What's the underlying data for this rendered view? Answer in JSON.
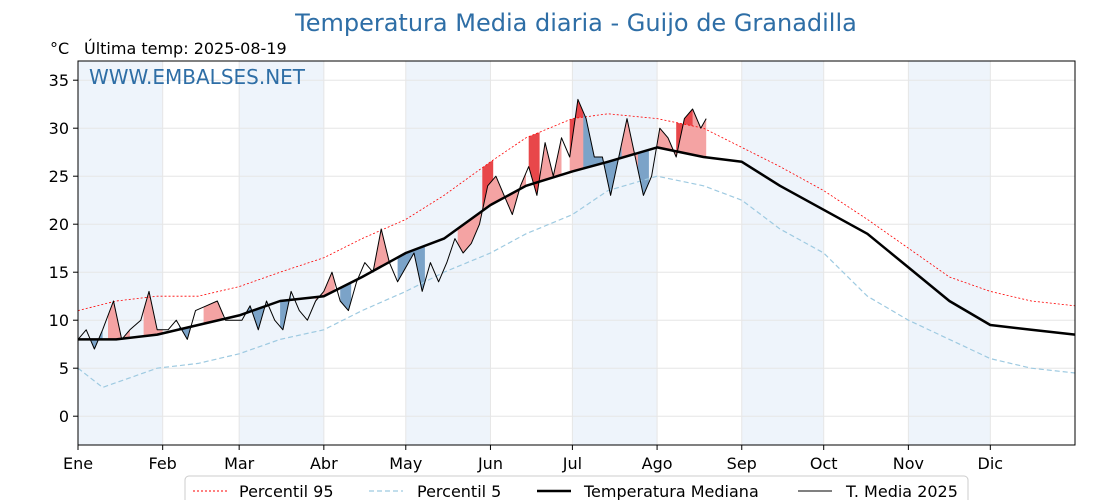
{
  "chart_data": {
    "type": "line",
    "title": "Temperatura Media diaria - Guijo de Granadilla",
    "unit": "°C",
    "last_temp_label": "Última temp: 2025-08-19",
    "watermark": "WWW.EMBALSES.NET",
    "ylim": [
      -3,
      37
    ],
    "yticks": [
      0,
      5,
      10,
      15,
      20,
      25,
      30,
      35
    ],
    "x_categories": [
      "Ene",
      "Feb",
      "Mar",
      "Abr",
      "May",
      "Jun",
      "Jul",
      "Ago",
      "Sep",
      "Oct",
      "Nov",
      "Dic"
    ],
    "month_start_day": [
      1,
      32,
      60,
      91,
      121,
      152,
      182,
      213,
      244,
      274,
      305,
      335
    ],
    "grid": true,
    "legend_position": "bottom",
    "colors": {
      "p95": "#ff0000",
      "p5": "#9ecae1",
      "median": "#000000",
      "current": "#000000",
      "above_fill": "#f4a3a3",
      "above_strong_fill": "#e8474a",
      "below_fill": "#7ba3c8",
      "shade": "#eef4fb",
      "title": "#2e6ea6"
    },
    "series": [
      {
        "name": "Percentil 95",
        "key": "p95",
        "style": "dotted-thin",
        "points": [
          [
            1,
            11
          ],
          [
            15,
            12
          ],
          [
            30,
            12.5
          ],
          [
            45,
            12.5
          ],
          [
            60,
            13.5
          ],
          [
            75,
            15
          ],
          [
            91,
            16.5
          ],
          [
            105,
            18.5
          ],
          [
            121,
            20.5
          ],
          [
            135,
            23
          ],
          [
            152,
            26.5
          ],
          [
            165,
            29
          ],
          [
            182,
            31
          ],
          [
            195,
            31.5
          ],
          [
            213,
            31
          ],
          [
            230,
            30
          ],
          [
            244,
            28
          ],
          [
            258,
            26
          ],
          [
            274,
            23.5
          ],
          [
            290,
            20.5
          ],
          [
            305,
            17.5
          ],
          [
            320,
            14.5
          ],
          [
            335,
            13
          ],
          [
            350,
            12
          ],
          [
            366,
            11.5
          ]
        ]
      },
      {
        "name": "Percentil 5",
        "key": "p5",
        "style": "dashed",
        "points": [
          [
            1,
            5
          ],
          [
            10,
            3
          ],
          [
            20,
            4
          ],
          [
            30,
            5
          ],
          [
            45,
            5.5
          ],
          [
            60,
            6.5
          ],
          [
            75,
            8
          ],
          [
            91,
            9
          ],
          [
            105,
            11
          ],
          [
            121,
            13
          ],
          [
            135,
            15
          ],
          [
            152,
            17
          ],
          [
            165,
            19
          ],
          [
            182,
            21
          ],
          [
            195,
            23.5
          ],
          [
            213,
            25
          ],
          [
            230,
            24
          ],
          [
            244,
            22.5
          ],
          [
            258,
            19.5
          ],
          [
            274,
            17
          ],
          [
            290,
            12.5
          ],
          [
            305,
            10
          ],
          [
            320,
            8
          ],
          [
            335,
            6
          ],
          [
            350,
            5
          ],
          [
            366,
            4.5
          ]
        ]
      },
      {
        "name": "Temperatura Mediana",
        "key": "median",
        "style": "thick",
        "points": [
          [
            1,
            8
          ],
          [
            15,
            8
          ],
          [
            30,
            8.5
          ],
          [
            45,
            9.5
          ],
          [
            60,
            10.5
          ],
          [
            75,
            12
          ],
          [
            91,
            12.5
          ],
          [
            105,
            14.5
          ],
          [
            121,
            17
          ],
          [
            135,
            18.5
          ],
          [
            152,
            22
          ],
          [
            165,
            24
          ],
          [
            182,
            25.5
          ],
          [
            195,
            26.5
          ],
          [
            213,
            28
          ],
          [
            230,
            27
          ],
          [
            244,
            26.5
          ],
          [
            258,
            24
          ],
          [
            274,
            21.5
          ],
          [
            290,
            19
          ],
          [
            305,
            15.5
          ],
          [
            320,
            12
          ],
          [
            335,
            9.5
          ],
          [
            350,
            9
          ],
          [
            366,
            8.5
          ]
        ]
      },
      {
        "name": "T. Media 2025",
        "key": "current",
        "style": "thin",
        "points": [
          [
            1,
            8
          ],
          [
            4,
            9
          ],
          [
            7,
            7
          ],
          [
            10,
            9
          ],
          [
            14,
            12
          ],
          [
            17,
            8
          ],
          [
            20,
            9
          ],
          [
            24,
            10
          ],
          [
            27,
            13
          ],
          [
            30,
            9
          ],
          [
            34,
            9
          ],
          [
            37,
            10
          ],
          [
            41,
            8
          ],
          [
            44,
            11
          ],
          [
            48,
            11.5
          ],
          [
            52,
            12
          ],
          [
            55,
            10
          ],
          [
            58,
            10
          ],
          [
            61,
            10
          ],
          [
            64,
            11.5
          ],
          [
            67,
            9
          ],
          [
            70,
            12
          ],
          [
            73,
            10
          ],
          [
            76,
            9
          ],
          [
            79,
            13
          ],
          [
            82,
            11
          ],
          [
            85,
            10
          ],
          [
            88,
            12
          ],
          [
            91,
            13
          ],
          [
            94,
            15
          ],
          [
            97,
            12
          ],
          [
            100,
            11
          ],
          [
            103,
            14
          ],
          [
            106,
            16
          ],
          [
            109,
            15
          ],
          [
            112,
            19.5
          ],
          [
            115,
            16
          ],
          [
            118,
            14
          ],
          [
            121,
            15.5
          ],
          [
            124,
            17
          ],
          [
            127,
            13
          ],
          [
            130,
            16
          ],
          [
            133,
            14
          ],
          [
            136,
            16
          ],
          [
            139,
            18.5
          ],
          [
            142,
            17
          ],
          [
            145,
            18
          ],
          [
            148,
            20
          ],
          [
            151,
            24
          ],
          [
            154,
            25
          ],
          [
            157,
            23
          ],
          [
            160,
            21
          ],
          [
            163,
            24
          ],
          [
            166,
            26
          ],
          [
            169,
            23
          ],
          [
            172,
            28.5
          ],
          [
            175,
            25
          ],
          [
            178,
            29
          ],
          [
            181,
            27
          ],
          [
            184,
            33
          ],
          [
            187,
            31
          ],
          [
            190,
            27
          ],
          [
            193,
            27
          ],
          [
            196,
            23
          ],
          [
            199,
            27
          ],
          [
            202,
            31
          ],
          [
            205,
            27
          ],
          [
            208,
            23
          ],
          [
            211,
            25
          ],
          [
            214,
            30
          ],
          [
            217,
            29
          ],
          [
            220,
            27
          ],
          [
            223,
            31
          ],
          [
            226,
            32
          ],
          [
            229,
            30
          ],
          [
            231,
            31
          ]
        ]
      }
    ],
    "above_fill_segments": [
      [
        12,
        20
      ],
      [
        25,
        32
      ],
      [
        47,
        54
      ],
      [
        88,
        95
      ],
      [
        108,
        115
      ],
      [
        140,
        165
      ],
      [
        168,
        178
      ],
      [
        181,
        188
      ],
      [
        192,
        197
      ],
      [
        200,
        207
      ],
      [
        213,
        231
      ]
    ],
    "above_strong_segments": [
      [
        149,
        153
      ],
      [
        166,
        170
      ],
      [
        181,
        187
      ],
      [
        220,
        226
      ]
    ],
    "below_fill_segments": [
      [
        6,
        10
      ],
      [
        38,
        42
      ],
      [
        62,
        70
      ],
      [
        75,
        79
      ],
      [
        97,
        101
      ],
      [
        118,
        128
      ],
      [
        186,
        200
      ],
      [
        206,
        210
      ]
    ]
  }
}
